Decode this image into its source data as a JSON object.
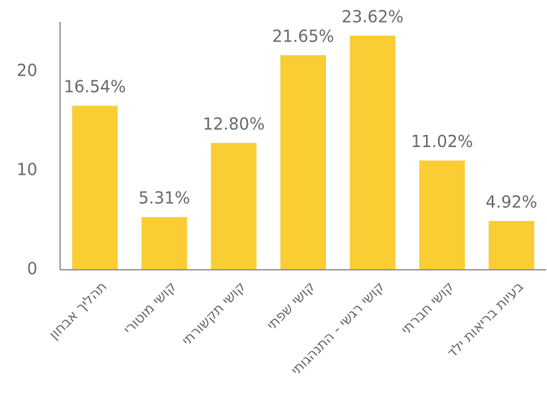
{
  "chart_data": {
    "type": "bar",
    "categories": [
      "תהליך אבחון",
      "קושי מוטורי",
      "קושי תקשורתי",
      "קושי שפתי",
      "קושי רגשי - התנהגותי",
      "קושי חברתי",
      "בעיות בריאות ילד"
    ],
    "values": [
      16.54,
      5.31,
      12.8,
      21.65,
      23.62,
      11.02,
      4.92
    ],
    "value_labels": [
      "16.54%",
      "5.31%",
      "12.80%",
      "21.65%",
      "23.62%",
      "11.02%",
      "4.92%"
    ],
    "color": "#f9cd33",
    "ylim": [
      0,
      25
    ],
    "yticks": [
      0,
      10,
      20
    ],
    "grid": false
  }
}
